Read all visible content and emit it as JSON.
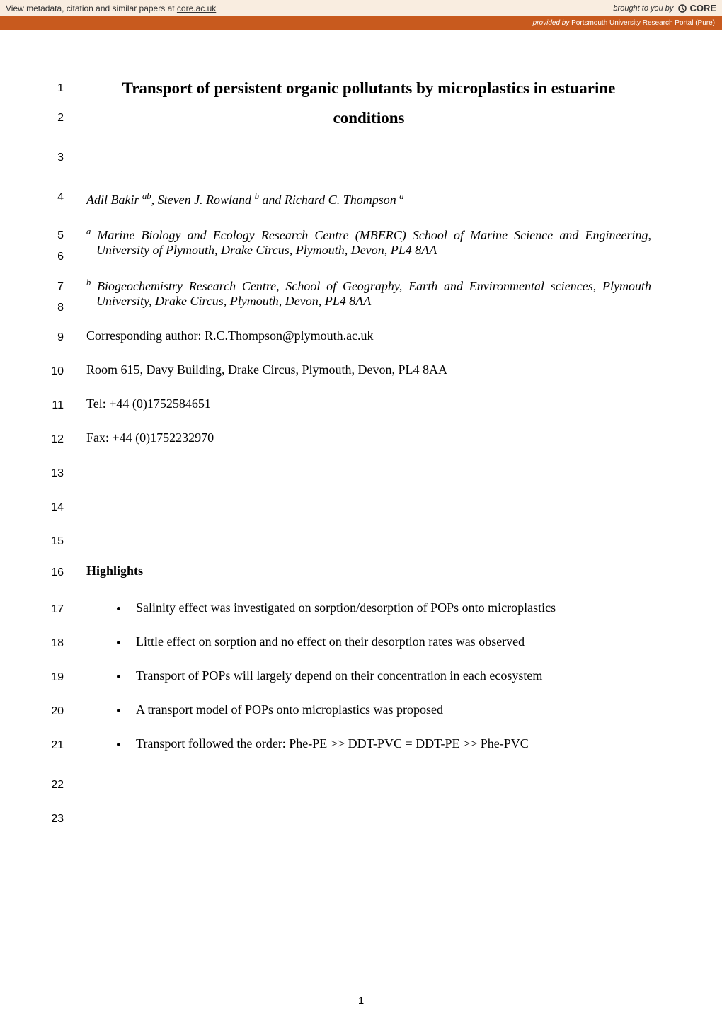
{
  "banner": {
    "left_prefix": "View metadata, citation and similar papers at ",
    "left_link": "core.ac.uk",
    "right_prefix": "brought to you by",
    "core_label": "CORE",
    "sub_prefix": "provided by ",
    "sub_source": "Portsmouth University Research Portal (Pure)"
  },
  "title": {
    "line1": "Transport of persistent organic pollutants by microplastics in estuarine",
    "line2": "conditions"
  },
  "authors_html": "Adil Bakir <sup>ab</sup>, Steven J. Rowland <sup>b</sup> and Richard C. Thompson <sup>a</sup>",
  "affil_a": "<sup>a</sup> Marine Biology and Ecology Research Centre (MBERC) School of Marine Science and Engineering, University of Plymouth, Drake Circus, Plymouth, Devon, PL4 8AA",
  "affil_b": "<sup>b</sup> Biogeochemistry Research Centre, School of Geography, Earth and Environmental sciences, Plymouth University, Drake Circus, Plymouth, Devon, PL4 8AA",
  "corresponding": "Corresponding author: R.C.Thompson@plymouth.ac.uk",
  "room": "Room 615, Davy Building, Drake Circus, Plymouth, Devon, PL4 8AA",
  "tel": "Tel: +44 (0)1752584651",
  "fax": "Fax: +44 (0)1752232970",
  "highlights_label": "Highlights",
  "bullets": [
    "Salinity effect was investigated on sorption/desorption of POPs onto microplastics",
    "Little effect on sorption and no effect on their desorption rates was observed",
    "Transport of POPs will largely depend on their concentration in each ecosystem",
    "A transport model of POPs onto microplastics was proposed",
    "Transport followed the order: Phe-PE >> DDT-PVC = DDT-PE >> Phe-PVC"
  ],
  "line_numbers": [
    "1",
    "2",
    "3",
    "4",
    "5",
    "6",
    "7",
    "8",
    "9",
    "10",
    "11",
    "12",
    "13",
    "14",
    "15",
    "16",
    "17",
    "18",
    "19",
    "20",
    "21",
    "22",
    "23"
  ],
  "page_number": "1",
  "style": {
    "banner_bg": "#f9ede0",
    "banner_border": "#c85a1e",
    "sub_banner_bg": "#c85a1e",
    "page_bg": "#ffffff",
    "body_font": "Times New Roman",
    "lineno_font": "Arial",
    "title_fontsize": 23,
    "body_fontsize": 18,
    "lineno_fontsize": 16
  }
}
